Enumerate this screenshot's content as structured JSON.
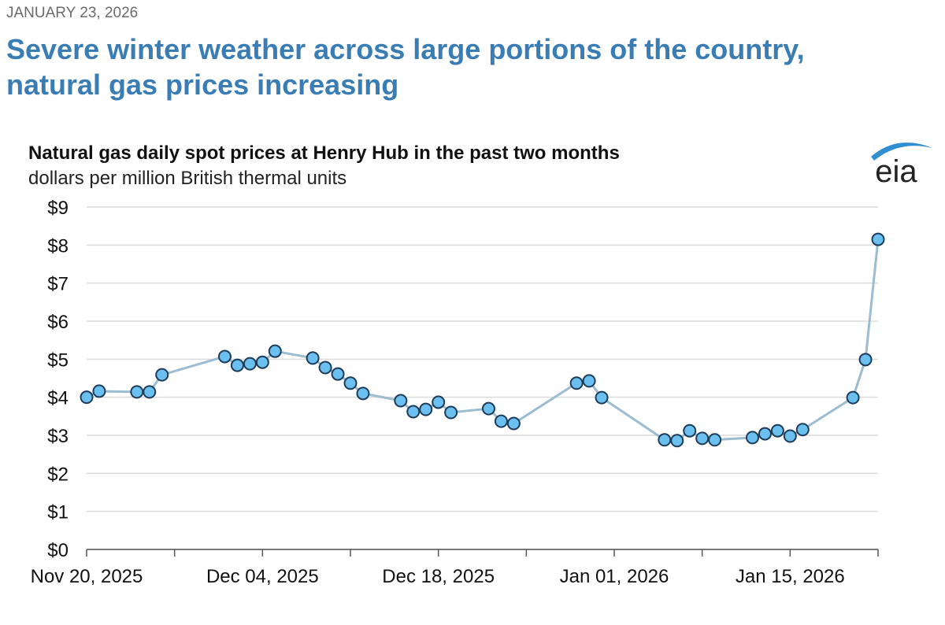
{
  "header": {
    "date": "JANUARY 23, 2026",
    "headline": [
      "Severe winter weather across large portions of the country,",
      "natural gas prices increasing"
    ],
    "logo": "eia"
  },
  "chart_data": {
    "type": "line",
    "title": "Natural gas daily spot prices at Henry Hub in the past two months",
    "subtitle": "dollars per million British thermal units",
    "x": [
      "2025-11-20",
      "2025-11-21",
      "2025-11-24",
      "2025-11-25",
      "2025-11-26",
      "2025-12-01",
      "2025-12-02",
      "2025-12-03",
      "2025-12-04",
      "2025-12-05",
      "2025-12-08",
      "2025-12-09",
      "2025-12-10",
      "2025-12-11",
      "2025-12-12",
      "2025-12-15",
      "2025-12-16",
      "2025-12-17",
      "2025-12-18",
      "2025-12-19",
      "2025-12-22",
      "2025-12-23",
      "2025-12-24",
      "2025-12-29",
      "2025-12-30",
      "2025-12-31",
      "2026-01-05",
      "2026-01-06",
      "2026-01-07",
      "2026-01-08",
      "2026-01-09",
      "2026-01-12",
      "2026-01-13",
      "2026-01-14",
      "2026-01-15",
      "2026-01-16",
      "2026-01-20",
      "2026-01-21",
      "2026-01-22"
    ],
    "series": [
      {
        "name": "Henry Hub",
        "color": "#9bbcd1",
        "marker_color": "#6cc0ef",
        "marker_edge": "#1d3c5a",
        "values": [
          4.0,
          4.16,
          4.14,
          4.14,
          4.59,
          5.07,
          4.84,
          4.88,
          4.92,
          5.21,
          5.03,
          4.78,
          4.61,
          4.37,
          4.1,
          3.91,
          3.62,
          3.68,
          3.87,
          3.6,
          3.7,
          3.37,
          3.31,
          4.37,
          4.43,
          3.99,
          2.88,
          2.86,
          3.12,
          2.92,
          2.88,
          2.94,
          3.04,
          3.12,
          2.98,
          3.15,
          3.99,
          4.99,
          8.15
        ]
      }
    ],
    "xlim": [
      "2025-11-20",
      "2026-01-22"
    ],
    "xticks": [
      {
        "value": "2025-11-20",
        "label": "Nov 20, 2025"
      },
      {
        "value": "2025-12-04",
        "label": "Dec 04, 2025"
      },
      {
        "value": "2025-12-18",
        "label": "Dec 18, 2025"
      },
      {
        "value": "2026-01-01",
        "label": "Jan 01, 2026"
      },
      {
        "value": "2026-01-15",
        "label": "Jan 15, 2026"
      }
    ],
    "x_minor_ticks": [
      "2025-11-27",
      "2025-12-11",
      "2025-12-25",
      "2026-01-08",
      "2026-01-22"
    ],
    "ylim": [
      0,
      9
    ],
    "yticks": [
      {
        "value": 0,
        "label": "$0"
      },
      {
        "value": 1,
        "label": "$1"
      },
      {
        "value": 2,
        "label": "$2"
      },
      {
        "value": 3,
        "label": "$3"
      },
      {
        "value": 4,
        "label": "$4"
      },
      {
        "value": 5,
        "label": "$5"
      },
      {
        "value": 6,
        "label": "$6"
      },
      {
        "value": 7,
        "label": "$7"
      },
      {
        "value": 8,
        "label": "$8"
      },
      {
        "value": 9,
        "label": "$9"
      }
    ],
    "grid": true
  }
}
